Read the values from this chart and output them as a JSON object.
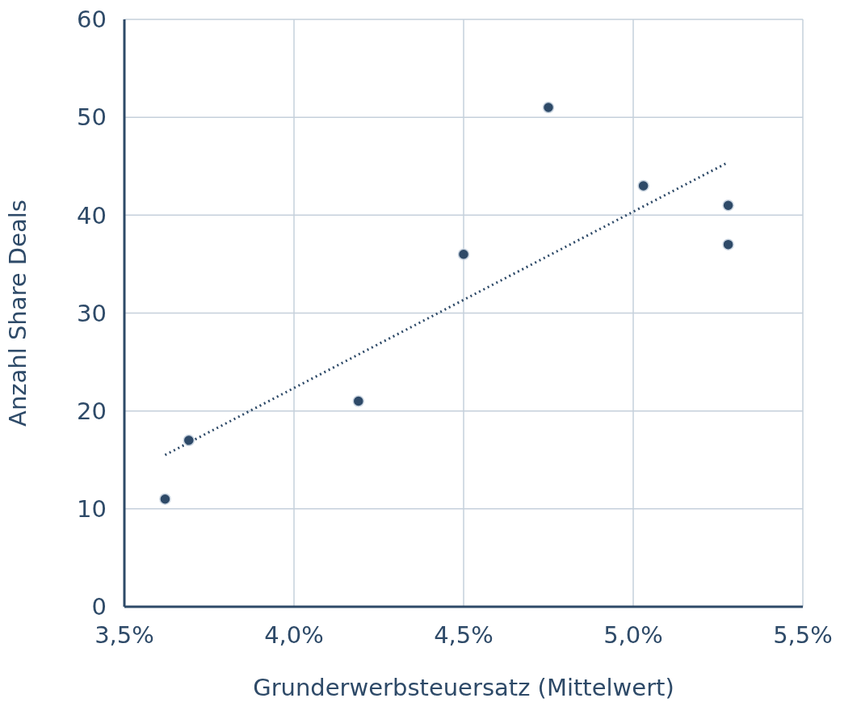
{
  "chart_data": {
    "type": "scatter",
    "xlabel": "Grunderwerbsteuersatz (Mittelwert)",
    "ylabel": "Anzahl Share Deals",
    "xlim": [
      3.5,
      5.5
    ],
    "xticks": [
      {
        "value": 3.5,
        "label": "3,5%"
      },
      {
        "value": 4.0,
        "label": "4,0%"
      },
      {
        "value": 4.5,
        "label": "4,5%"
      },
      {
        "value": 5.0,
        "label": "5,0%"
      },
      {
        "value": 5.5,
        "label": "5,5%"
      }
    ],
    "ylim": [
      0,
      60
    ],
    "yticks": [
      0,
      10,
      20,
      30,
      40,
      50,
      60
    ],
    "grid": true,
    "series": [
      {
        "type": "scatter",
        "color": "#2e4a68",
        "marker": "circle",
        "x": [
          3.62,
          3.69,
          4.19,
          4.5,
          4.75,
          5.03,
          5.28,
          5.28
        ],
        "values": [
          11,
          17,
          21,
          36,
          51,
          43,
          41,
          37
        ]
      },
      {
        "type": "line",
        "color": "#2e4a68",
        "marker": "none",
        "line_style": "dotted",
        "x": [
          3.62,
          5.28
        ],
        "values": [
          15.5,
          45.4
        ]
      }
    ]
  }
}
